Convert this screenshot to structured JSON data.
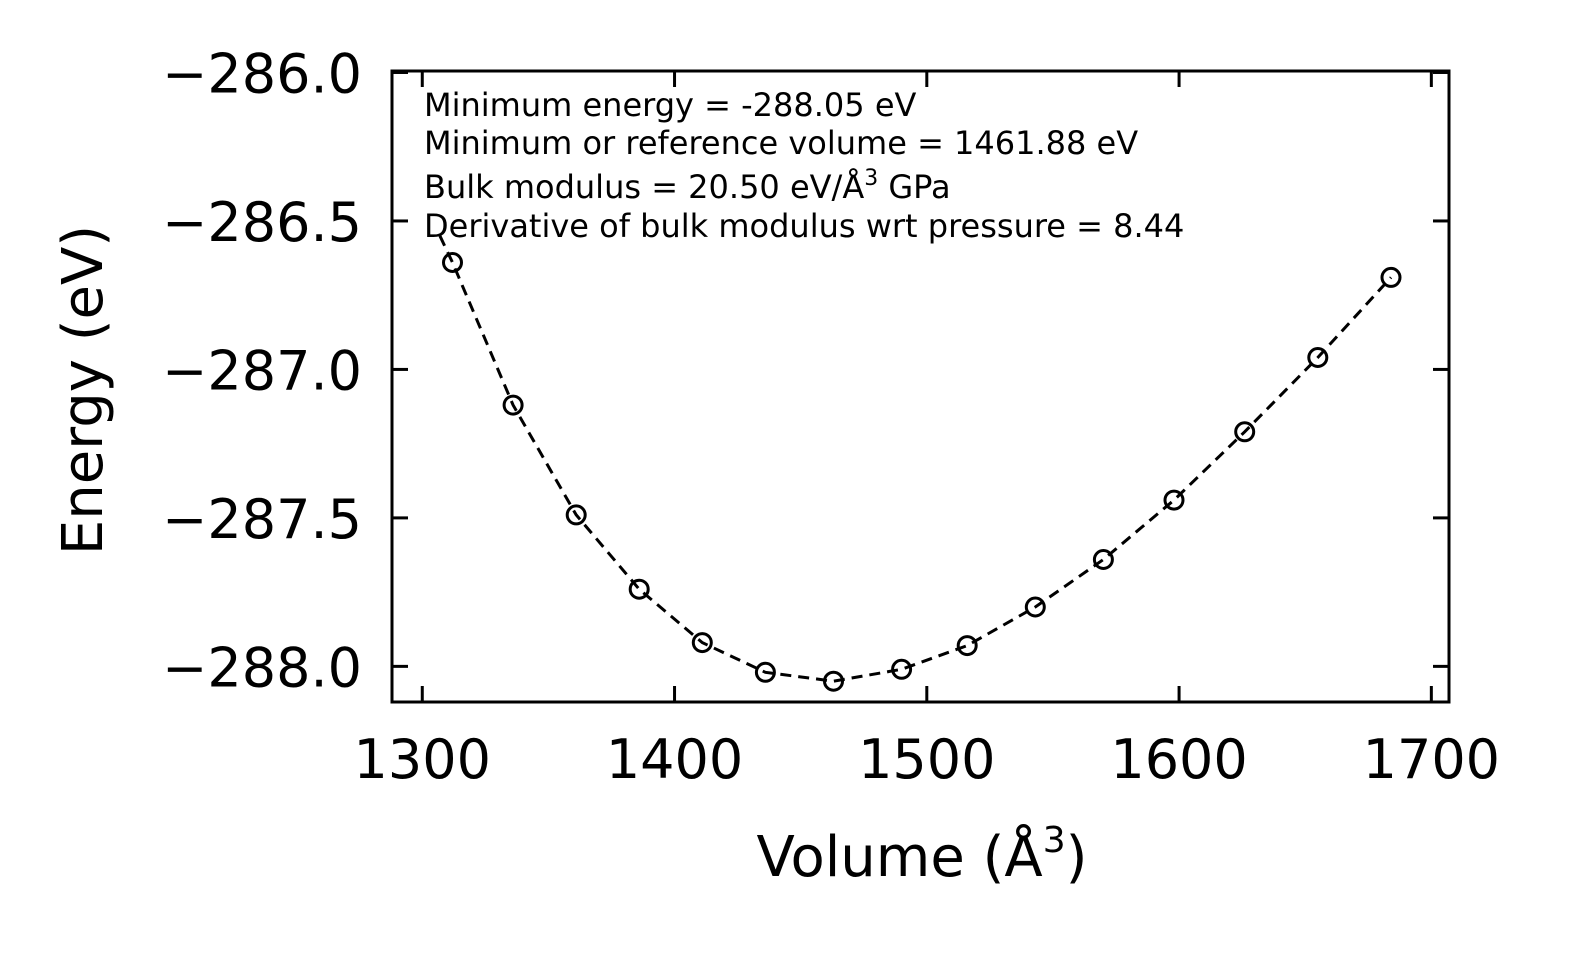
{
  "chart_data": {
    "type": "scatter",
    "title": "",
    "xlabel": "Volume (Å",
    "xlabel_sup": "3",
    "xlabel_close": ")",
    "ylabel": "Energy (eV)",
    "xlim": [
      1288,
      1707
    ],
    "ylim": [
      -288.12,
      -285.995
    ],
    "x_ticks": [
      1300,
      1400,
      1500,
      1600,
      1700
    ],
    "x_tick_labels": [
      "1300",
      "1400",
      "1500",
      "1600",
      "1700"
    ],
    "y_ticks": [
      -286.0,
      -286.5,
      -287.0,
      -287.5,
      -288.0
    ],
    "y_tick_labels": [
      "−286.0",
      "−286.5",
      "−287.0",
      "−287.5",
      "−288.0"
    ],
    "series": [
      {
        "name": "data points",
        "marker": "open-circle",
        "x": [
          1312,
          1336,
          1361,
          1386,
          1411,
          1436,
          1463,
          1490,
          1516,
          1543,
          1570,
          1598,
          1626,
          1655,
          1684
        ],
        "y": [
          -286.64,
          -287.12,
          -287.49,
          -287.74,
          -287.92,
          -288.02,
          -288.05,
          -288.01,
          -287.93,
          -287.8,
          -287.64,
          -287.44,
          -287.21,
          -286.96,
          -286.69
        ]
      },
      {
        "name": "fit",
        "line_style": "dashed",
        "x": [
          1307,
          1312,
          1336,
          1361,
          1386,
          1411,
          1436,
          1463,
          1490,
          1516,
          1543,
          1570,
          1598,
          1626,
          1655,
          1684
        ],
        "y": [
          -286.55,
          -286.64,
          -287.12,
          -287.49,
          -287.74,
          -287.92,
          -288.02,
          -288.05,
          -288.01,
          -287.93,
          -287.8,
          -287.64,
          -287.44,
          -287.21,
          -286.96,
          -286.69
        ]
      }
    ],
    "annotations": [
      "Minimum energy = -288.05 eV",
      "Minimum or reference volume = 1461.88 eV",
      "Bulk modulus = 20.50 eV/Å",
      "Derivative of bulk modulus wrt pressure = 8.44"
    ],
    "annotation_sup": "3",
    "annotation_suffix": " GPa",
    "grid": false,
    "legend": "none",
    "colors": {
      "line": "#000000",
      "marker": "#000000",
      "background": "#ffffff"
    }
  }
}
